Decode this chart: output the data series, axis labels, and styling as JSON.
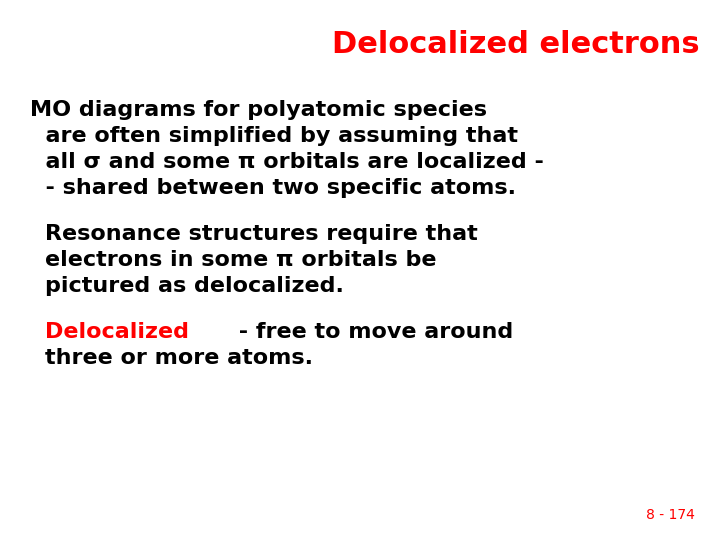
{
  "title": "Delocalized electrons",
  "title_color": "#FF0000",
  "title_fontsize": 22,
  "background_color": "#FFFFFF",
  "slide_number": "8 - 174",
  "slide_number_color": "#FF0000",
  "slide_number_fontsize": 10,
  "body_fontsize": 16,
  "body_color": "#000000",
  "red_color": "#FF0000",
  "black_color": "#000000",
  "p1_lines": [
    "MO diagrams for polyatomic species",
    "  are often simplified by assuming that",
    "  all σ and some π orbitals are localized -",
    "  - shared between two specific atoms."
  ],
  "p2_lines": [
    "Resonance structures require that",
    "electrons in some π orbitals be",
    "pictured as delocalized."
  ],
  "p3_red": "Delocalized",
  "p3_black": " - free to move around",
  "p3_line2": "three or more atoms."
}
